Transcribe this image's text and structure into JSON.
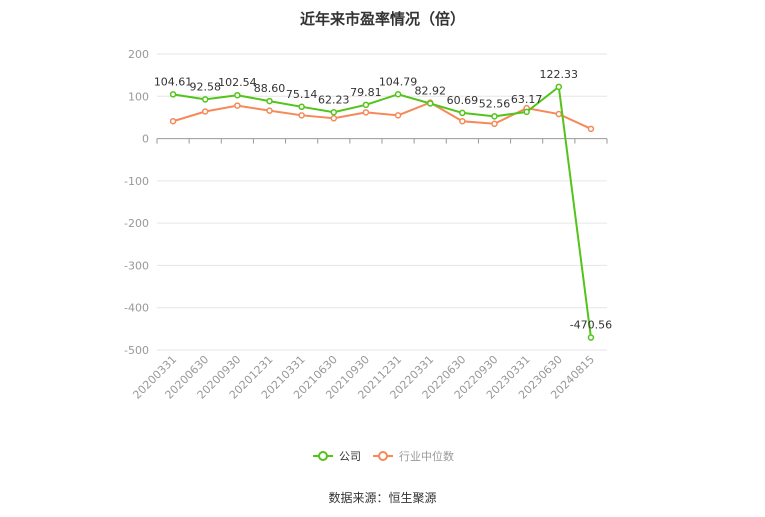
{
  "title": "近年来市盈率情况（倍）",
  "source": "数据来源：恒生聚源",
  "colors": {
    "company": "#52c41a",
    "industry": "#f5895a",
    "grid": "#e6e6e6",
    "axis": "#999999",
    "text": "#333333"
  },
  "chart_data": {
    "type": "line",
    "title": "近年来市盈率情况（倍）",
    "categories": [
      "20200331",
      "20200630",
      "20200930",
      "20201231",
      "20210331",
      "20210630",
      "20210930",
      "20211231",
      "20220331",
      "20220630",
      "20220930",
      "20230331",
      "20230630",
      "20240815"
    ],
    "yticks": [
      200,
      100,
      0,
      -100,
      -200,
      -300,
      -400,
      -500
    ],
    "ylim": [
      -500,
      200
    ],
    "grid": true,
    "legend_position": "bottom",
    "series": [
      {
        "name": "公司",
        "color": "#52c41a",
        "show_labels": true,
        "values": [
          104.61,
          92.58,
          102.54,
          88.6,
          75.14,
          62.23,
          79.81,
          104.79,
          82.92,
          60.69,
          52.56,
          63.17,
          122.33,
          -470.56
        ],
        "labels": [
          "104.61",
          "92.58",
          "102.54",
          "88.60",
          "75.14",
          "62.23",
          "79.81",
          "104.79",
          "82.92",
          "60.69",
          "52.56",
          "63.17",
          "122.33",
          "-470.56"
        ]
      },
      {
        "name": "行业中位数",
        "color": "#f5895a",
        "show_labels": false,
        "values": [
          41,
          64,
          78,
          66,
          55,
          48,
          62,
          55,
          85,
          41,
          35,
          72,
          58,
          23
        ]
      }
    ]
  }
}
